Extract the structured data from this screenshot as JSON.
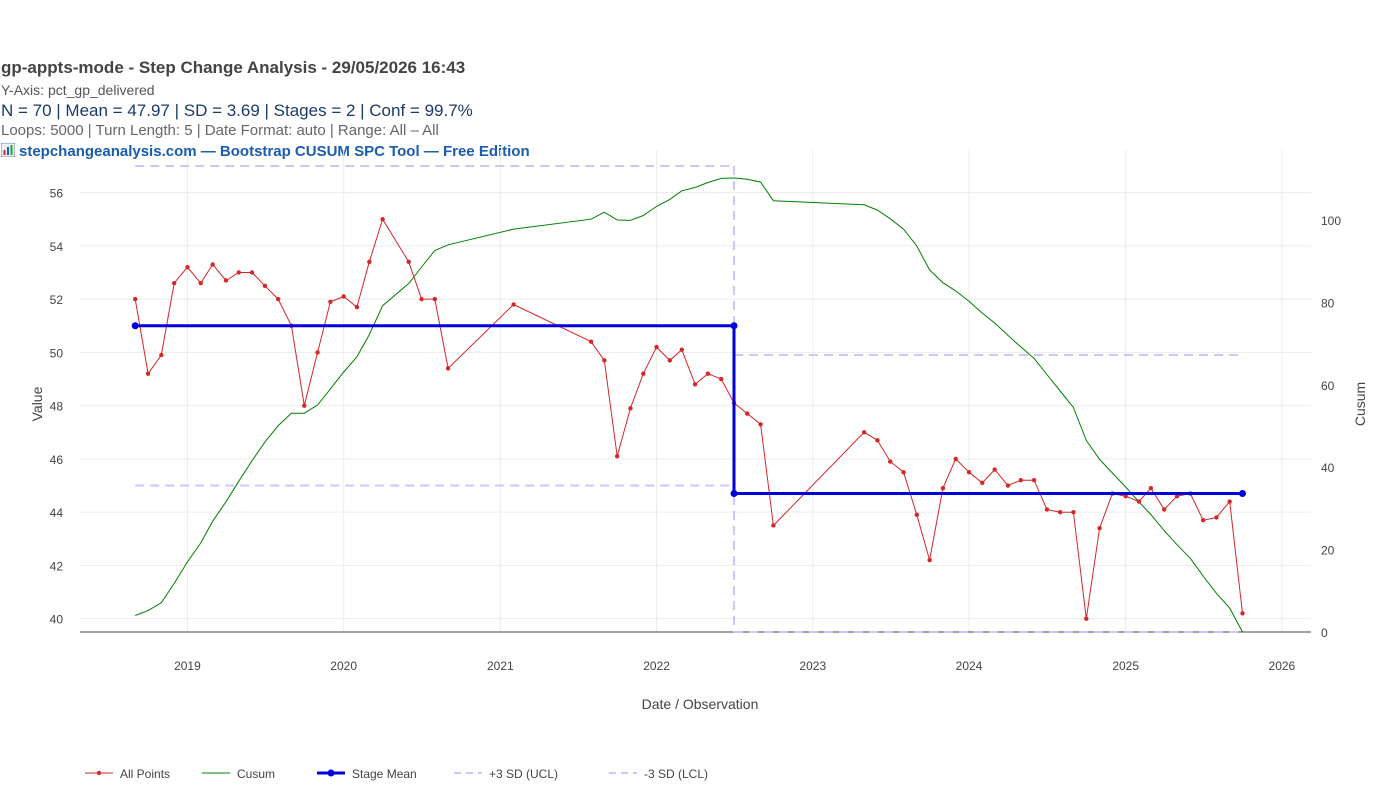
{
  "header": {
    "title": "gp-appts-mode - Step Change Analysis - 29/05/2026 16:43",
    "y_axis_line": "Y-Axis: pct_gp_delivered",
    "stats_line": "N = 70  |  Mean = 47.97  |  SD = 3.69  |  Stages = 2  |  Conf = 99.7%",
    "params_line": "Loops: 5000  |  Turn Length: 5  |  Date Format: auto  |  Range: All – All",
    "credit_line": "stepchangeanalysis.com — Bootstrap CUSUM SPC Tool — Free Edition",
    "credit_icon": "bar-chart-icon"
  },
  "chart_data": {
    "type": "line",
    "xlabel": "Date / Observation",
    "ylabel": "Value",
    "y2label": "Cusum",
    "x_ticks": [
      "2019",
      "2020",
      "2021",
      "2022",
      "2023",
      "2024",
      "2025",
      "2026"
    ],
    "y_ticks": [
      40,
      42,
      44,
      46,
      48,
      50,
      52,
      54,
      56
    ],
    "y2_ticks": [
      0,
      20,
      40,
      60,
      80,
      100
    ],
    "xlim": [
      "2018-04-25",
      "2026-03-10"
    ],
    "ylim": [
      39.5,
      57.6
    ],
    "y2lim": [
      0,
      117
    ],
    "grid": true,
    "legend_position": "bottom-left",
    "colors": {
      "points": "#d62728",
      "cusum": "#008000",
      "stage_mean": "#0000dd",
      "limits": "#c8c8ff"
    },
    "series": [
      {
        "name": "All Points",
        "style": "lines+markers",
        "x": [
          "2018-09-01",
          "2018-10-01",
          "2018-11-01",
          "2018-12-01",
          "2019-01-01",
          "2019-02-01",
          "2019-03-01",
          "2019-04-01",
          "2019-05-01",
          "2019-06-01",
          "2019-07-01",
          "2019-08-01",
          "2019-09-01",
          "2019-10-01",
          "2019-11-01",
          "2019-12-01",
          "2020-01-01",
          "2020-02-01",
          "2020-03-01",
          "2020-04-01",
          "2020-06-01",
          "2020-07-01",
          "2020-08-01",
          "2020-09-01",
          "2021-02-01",
          "2021-08-01",
          "2021-09-01",
          "2021-10-01",
          "2021-11-01",
          "2021-12-01",
          "2022-01-01",
          "2022-02-01",
          "2022-03-01",
          "2022-04-01",
          "2022-05-01",
          "2022-06-01",
          "2022-07-01",
          "2022-08-01",
          "2022-09-01",
          "2022-10-01",
          "2023-05-01",
          "2023-06-01",
          "2023-07-01",
          "2023-08-01",
          "2023-09-01",
          "2023-10-01",
          "2023-11-01",
          "2023-12-01",
          "2024-01-01",
          "2024-02-01",
          "2024-03-01",
          "2024-04-01",
          "2024-05-01",
          "2024-06-01",
          "2024-07-01",
          "2024-08-01",
          "2024-09-01",
          "2024-10-01",
          "2024-11-01",
          "2024-12-01",
          "2025-01-01",
          "2025-02-01",
          "2025-03-01",
          "2025-04-01",
          "2025-05-01",
          "2025-06-01",
          "2025-07-01",
          "2025-08-01",
          "2025-09-01",
          "2025-10-01"
        ],
        "values": [
          52.0,
          49.2,
          49.9,
          52.6,
          53.2,
          52.6,
          53.3,
          52.7,
          53.0,
          53.0,
          52.5,
          52.0,
          51.0,
          48.0,
          50.0,
          51.9,
          52.1,
          51.7,
          53.4,
          55.0,
          53.4,
          52.0,
          52.0,
          49.4,
          51.8,
          50.4,
          49.7,
          46.1,
          47.9,
          49.2,
          50.2,
          49.7,
          50.1,
          48.8,
          49.2,
          49.0,
          48.1,
          47.7,
          47.3,
          43.5,
          47.0,
          46.7,
          45.9,
          45.5,
          43.9,
          42.2,
          44.9,
          46.0,
          45.5,
          45.1,
          45.6,
          45.0,
          45.2,
          45.2,
          44.1,
          44.0,
          44.0,
          40.0,
          43.4,
          44.7,
          44.6,
          44.4,
          44.9,
          44.1,
          44.6,
          44.7,
          43.7,
          43.8,
          44.4,
          40.2
        ]
      },
      {
        "name": "Cusum",
        "axis": "y2",
        "style": "lines",
        "x": [
          "2018-09-01",
          "2018-10-01",
          "2018-11-01",
          "2018-12-01",
          "2019-01-01",
          "2019-02-01",
          "2019-03-01",
          "2019-04-01",
          "2019-05-01",
          "2019-06-01",
          "2019-07-01",
          "2019-08-01",
          "2019-09-01",
          "2019-10-01",
          "2019-11-01",
          "2019-12-01",
          "2020-01-01",
          "2020-02-01",
          "2020-03-01",
          "2020-04-01",
          "2020-06-01",
          "2020-07-01",
          "2020-08-01",
          "2020-09-01",
          "2021-02-01",
          "2021-08-01",
          "2021-09-01",
          "2021-10-01",
          "2021-11-01",
          "2021-12-01",
          "2022-01-01",
          "2022-02-01",
          "2022-03-01",
          "2022-04-01",
          "2022-05-01",
          "2022-06-01",
          "2022-07-01",
          "2022-08-01",
          "2022-09-01",
          "2022-10-01",
          "2023-05-01",
          "2023-06-01",
          "2023-07-01",
          "2023-08-01",
          "2023-09-01",
          "2023-10-01",
          "2023-11-01",
          "2023-12-01",
          "2024-01-01",
          "2024-02-01",
          "2024-03-01",
          "2024-04-01",
          "2024-05-01",
          "2024-06-01",
          "2024-07-01",
          "2024-08-01",
          "2024-09-01",
          "2024-10-01",
          "2024-11-01",
          "2024-12-01",
          "2025-01-01",
          "2025-02-01",
          "2025-03-01",
          "2025-04-01",
          "2025-05-01",
          "2025-06-01",
          "2025-07-01",
          "2025-08-01",
          "2025-09-01",
          "2025-10-01"
        ],
        "values": [
          4.0,
          5.2,
          7.1,
          11.8,
          17.0,
          21.6,
          26.9,
          31.6,
          36.6,
          41.6,
          46.1,
          50.1,
          53.1,
          53.1,
          55.1,
          59.0,
          63.1,
          66.8,
          72.2,
          79.2,
          84.6,
          88.6,
          92.6,
          94.0,
          97.8,
          100.2,
          101.9,
          100.0,
          99.9,
          101.1,
          103.3,
          105.0,
          107.1,
          107.9,
          109.1,
          110.1,
          110.2,
          109.9,
          109.2,
          104.7,
          103.7,
          102.4,
          100.3,
          97.8,
          93.7,
          87.9,
          84.8,
          82.8,
          80.3,
          77.4,
          75.0,
          72.0,
          69.2,
          66.4,
          62.5,
          58.5,
          54.5,
          46.5,
          41.9,
          38.6,
          35.2,
          31.6,
          28.5,
          24.6,
          21.2,
          17.9,
          13.6,
          9.4,
          5.8,
          0.0
        ]
      },
      {
        "name": "Stage Mean",
        "style": "lines+markers",
        "x": [
          "2018-09-01",
          "2022-07-01",
          "2022-07-01",
          "2025-10-01"
        ],
        "values": [
          51.0,
          51.0,
          44.7,
          44.7
        ]
      },
      {
        "name": "+3 SD (UCL)",
        "style": "dash",
        "x": [
          "2018-09-01",
          "2022-07-01",
          null,
          "2022-07-01",
          "2025-10-01"
        ],
        "values": [
          57.0,
          57.0,
          null,
          49.9,
          49.9
        ]
      },
      {
        "name": "-3 SD (LCL)",
        "style": "dash",
        "x": [
          "2018-09-01",
          "2022-07-01",
          null,
          "2022-07-01",
          "2025-10-01"
        ],
        "values": [
          45.0,
          45.0,
          null,
          39.5,
          39.5
        ]
      }
    ],
    "change_point": "2022-07-01"
  }
}
